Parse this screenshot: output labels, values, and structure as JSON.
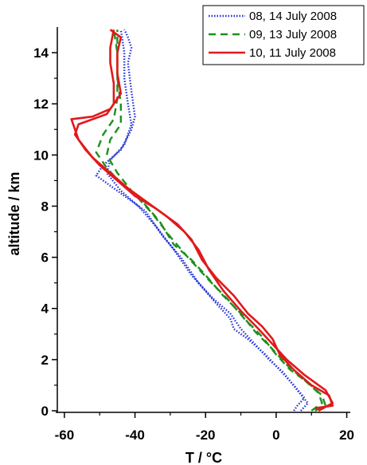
{
  "chart_data": {
    "type": "line",
    "title": "",
    "xlabel": "T / °C",
    "ylabel": "altitude / km",
    "xlim": [
      -62,
      21
    ],
    "ylim": [
      0,
      15
    ],
    "xticks": [
      -60,
      -40,
      -20,
      0,
      20
    ],
    "yticks": [
      0,
      2,
      4,
      6,
      8,
      10,
      12,
      14
    ],
    "grid": false,
    "legend_position": "top-right",
    "series": [
      {
        "name": "08, 14 July 2008",
        "color": "#1f2fd6",
        "style": "dotted",
        "values": [
          {
            "profile": 1,
            "points": [
              [
                5,
                0
              ],
              [
                6,
                0.2
              ],
              [
                8,
                0.5
              ],
              [
                5,
                1.0
              ],
              [
                1,
                1.6
              ],
              [
                -3,
                2.2
              ],
              [
                -8,
                2.8
              ],
              [
                -12,
                3.2
              ],
              [
                -13,
                3.6
              ],
              [
                -17,
                4.2
              ],
              [
                -22,
                5.0
              ],
              [
                -27,
                6.0
              ],
              [
                -32,
                6.8
              ],
              [
                -37,
                7.8
              ],
              [
                -42,
                8.3
              ],
              [
                -46,
                8.7
              ],
              [
                -51,
                9.2
              ],
              [
                -49,
                9.6
              ],
              [
                -44,
                10.2
              ],
              [
                -41,
                11.0
              ],
              [
                -40,
                11.5
              ],
              [
                -41,
                12.5
              ],
              [
                -42,
                13.6
              ],
              [
                -41,
                14.2
              ],
              [
                -42,
                14.6
              ],
              [
                -43,
                14.9
              ]
            ]
          },
          {
            "profile": 2,
            "points": [
              [
                7,
                0
              ],
              [
                9,
                0.3
              ],
              [
                6,
                0.8
              ],
              [
                2,
                1.5
              ],
              [
                -2,
                2.0
              ],
              [
                -6,
                2.6
              ],
              [
                -10,
                3.2
              ],
              [
                -13,
                3.8
              ],
              [
                -18,
                4.4
              ],
              [
                -24,
                5.3
              ],
              [
                -29,
                6.3
              ],
              [
                -34,
                7.2
              ],
              [
                -39,
                8.0
              ],
              [
                -44,
                8.6
              ],
              [
                -48,
                9.3
              ],
              [
                -47,
                9.8
              ],
              [
                -43,
                10.4
              ],
              [
                -41,
                11.2
              ],
              [
                -42,
                12.0
              ],
              [
                -43,
                13.0
              ],
              [
                -43,
                14.0
              ],
              [
                -44,
                14.9
              ]
            ]
          }
        ]
      },
      {
        "name": "09, 13 July 2008",
        "color": "#1e8f1e",
        "style": "dashed",
        "values": [
          {
            "profile": 1,
            "points": [
              [
                10,
                0
              ],
              [
                13,
                0.3
              ],
              [
                12,
                0.7
              ],
              [
                8,
                1.2
              ],
              [
                3,
                1.8
              ],
              [
                -1,
                2.4
              ],
              [
                -6,
                3.1
              ],
              [
                -10,
                3.8
              ],
              [
                -15,
                4.5
              ],
              [
                -20,
                5.3
              ],
              [
                -24,
                5.9
              ],
              [
                -29,
                6.5
              ],
              [
                -33,
                7.4
              ],
              [
                -38,
                8.2
              ],
              [
                -44,
                8.9
              ],
              [
                -48,
                9.5
              ],
              [
                -51,
                10.1
              ],
              [
                -49,
                10.8
              ],
              [
                -46,
                11.4
              ],
              [
                -45,
                12.2
              ],
              [
                -45,
                13.0
              ],
              [
                -45,
                14.0
              ],
              [
                -45,
                14.9
              ]
            ]
          },
          {
            "profile": 2,
            "points": [
              [
                11,
                0
              ],
              [
                14,
                0.2
              ],
              [
                13,
                0.6
              ],
              [
                9,
                1.1
              ],
              [
                4,
                1.6
              ],
              [
                0,
                2.2
              ],
              [
                -4,
                2.9
              ],
              [
                -9,
                3.6
              ],
              [
                -14,
                4.4
              ],
              [
                -19,
                5.1
              ],
              [
                -25,
                6.0
              ],
              [
                -30,
                6.8
              ],
              [
                -35,
                7.7
              ],
              [
                -41,
                8.6
              ],
              [
                -45,
                9.3
              ],
              [
                -48,
                10.0
              ],
              [
                -47,
                10.6
              ],
              [
                -44,
                11.2
              ],
              [
                -44,
                12.0
              ],
              [
                -45,
                13.0
              ],
              [
                -45,
                14.0
              ],
              [
                -46,
                14.9
              ]
            ]
          }
        ]
      },
      {
        "name": "10, 11 July 2008",
        "color": "#e0191c",
        "style": "solid",
        "values": [
          {
            "profile": 1,
            "points": [
              [
                11,
                0.1
              ],
              [
                16,
                0.2
              ],
              [
                15,
                0.6
              ],
              [
                10,
                1.0
              ],
              [
                5,
                1.6
              ],
              [
                1,
                2.2
              ],
              [
                -1,
                2.8
              ],
              [
                -4,
                3.3
              ],
              [
                -8,
                3.8
              ],
              [
                -12,
                4.5
              ],
              [
                -17,
                5.2
              ],
              [
                -21,
                5.9
              ],
              [
                -24,
                6.7
              ],
              [
                -28,
                7.3
              ],
              [
                -34,
                7.9
              ],
              [
                -40,
                8.4
              ],
              [
                -45,
                9.0
              ],
              [
                -50,
                9.6
              ],
              [
                -54,
                10.2
              ],
              [
                -57,
                10.8
              ],
              [
                -56,
                11.2
              ],
              [
                -48,
                11.6
              ],
              [
                -46,
                12.0
              ],
              [
                -46,
                12.8
              ],
              [
                -47,
                13.6
              ],
              [
                -47,
                14.2
              ],
              [
                -46,
                14.9
              ]
            ]
          },
          {
            "profile": 2,
            "points": [
              [
                12,
                0
              ],
              [
                16,
                0.3
              ],
              [
                14,
                0.8
              ],
              [
                8,
                1.4
              ],
              [
                3,
                2.0
              ],
              [
                -1,
                2.6
              ],
              [
                -5,
                3.2
              ],
              [
                -10,
                3.9
              ],
              [
                -15,
                4.7
              ],
              [
                -19,
                5.5
              ],
              [
                -22,
                6.3
              ],
              [
                -26,
                7.0
              ],
              [
                -31,
                7.6
              ],
              [
                -37,
                8.2
              ],
              [
                -42,
                8.7
              ],
              [
                -47,
                9.3
              ],
              [
                -52,
                9.9
              ],
              [
                -56,
                10.6
              ],
              [
                -58,
                11.4
              ],
              [
                -52,
                11.5
              ],
              [
                -47,
                11.8
              ],
              [
                -44,
                12.4
              ],
              [
                -45,
                13.2
              ],
              [
                -45,
                14.0
              ],
              [
                -44,
                14.6
              ],
              [
                -47,
                14.9
              ]
            ]
          }
        ]
      }
    ]
  }
}
